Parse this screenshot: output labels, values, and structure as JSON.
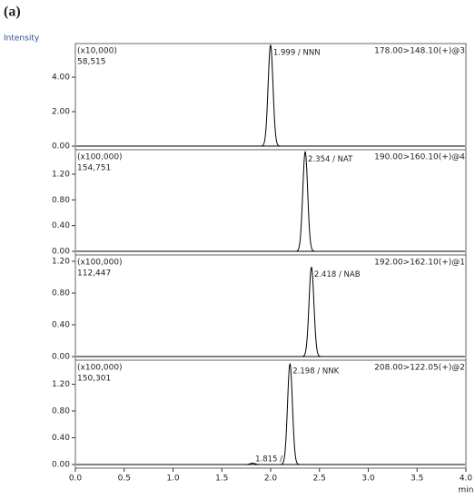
{
  "chart_data": [
    {
      "type": "line",
      "title": "(a)",
      "ylabel": "Intensity",
      "scale_label": "(x10,000)",
      "max_label": "58,515",
      "transition": "178.00>148.10(+)@3",
      "xlim": [
        0,
        4
      ],
      "ylim": [
        0,
        5.95
      ],
      "yticks": [
        {
          "value": 0,
          "label": "0.00"
        },
        {
          "value": 2,
          "label": "2.00"
        },
        {
          "value": 4,
          "label": "4.00"
        }
      ],
      "peaks": [
        {
          "x": 1.999,
          "y": 5.85,
          "label": "1.999 / NNN"
        }
      ]
    },
    {
      "type": "line",
      "scale_label": "(x100,000)",
      "max_label": "154,751",
      "transition": "190.00>160.10(+)@4",
      "xlim": [
        0,
        4
      ],
      "ylim": [
        0,
        1.58
      ],
      "yticks": [
        {
          "value": 0,
          "label": "0.00"
        },
        {
          "value": 0.4,
          "label": "0.40"
        },
        {
          "value": 0.8,
          "label": "0.80"
        },
        {
          "value": 1.2,
          "label": "1.20"
        }
      ],
      "peaks": [
        {
          "x": 2.354,
          "y": 1.5475,
          "label": "2.354 / NAT"
        }
      ]
    },
    {
      "type": "line",
      "scale_label": "(x100,000)",
      "max_label": "112,447",
      "transition": "192.00>162.10(+)@1",
      "xlim": [
        0,
        4
      ],
      "ylim": [
        0,
        1.28
      ],
      "yticks": [
        {
          "value": 0,
          "label": "0.00"
        },
        {
          "value": 0.4,
          "label": "0.40"
        },
        {
          "value": 0.8,
          "label": "0.80"
        },
        {
          "value": 1.2,
          "label": "1.20"
        }
      ],
      "peaks": [
        {
          "x": 2.418,
          "y": 1.124,
          "label": "2.418 / NAB"
        }
      ]
    },
    {
      "type": "line",
      "scale_label": "(x100,000)",
      "max_label": "150,301",
      "transition": "208.00>122.05(+)@2",
      "xlim": [
        0,
        4
      ],
      "ylim": [
        0,
        1.56
      ],
      "yticks": [
        {
          "value": 0,
          "label": "0.00"
        },
        {
          "value": 0.4,
          "label": "0.40"
        },
        {
          "value": 0.8,
          "label": "0.80"
        },
        {
          "value": 1.2,
          "label": "1.20"
        }
      ],
      "peaks": [
        {
          "x": 1.815,
          "y": 0.02,
          "label": "1.815 /"
        },
        {
          "x": 2.198,
          "y": 1.503,
          "label": "2.198 / NNK"
        }
      ],
      "xlabel": "min",
      "xticks": [
        {
          "value": 0,
          "label": "0.0"
        },
        0.5,
        {
          "value": 1,
          "label": "1.0"
        },
        1.5,
        {
          "value": 2,
          "label": "2.0"
        },
        2.5,
        {
          "value": 3,
          "label": "3.0"
        },
        3.5,
        {
          "value": 4,
          "label": "4.0"
        }
      ]
    }
  ]
}
